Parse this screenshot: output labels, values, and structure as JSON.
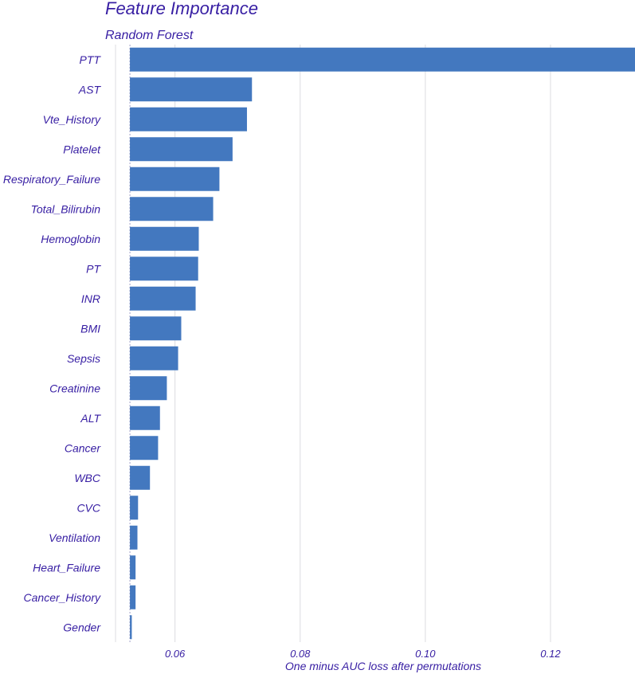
{
  "chart_data": {
    "type": "bar",
    "orientation": "horizontal",
    "title": "Feature Importance",
    "subtitle": "Random Forest",
    "xlabel": "One minus AUC loss after permutations",
    "ylabel": "",
    "baseline": 0.0528,
    "xlim": [
      0.0505,
      0.1335
    ],
    "xticks": [
      0.06,
      0.08,
      0.1,
      0.12
    ],
    "xtick_labels": [
      "0.06",
      "0.08",
      "0.10",
      "0.12"
    ],
    "grid": true,
    "bar_color": "#4378bf",
    "text_color": "#371ea3",
    "categories": [
      "PTT",
      "AST",
      "Vte_History",
      "Platelet",
      "Respiratory_Failure",
      "Total_Bilirubin",
      "Hemoglobin",
      "PT",
      "INR",
      "BMI",
      "Sepsis",
      "Creatinine",
      "ALT",
      "Cancer",
      "WBC",
      "CVC",
      "Ventilation",
      "Heart_Failure",
      "Cancer_History",
      "Gender"
    ],
    "values": [
      0.1335,
      0.0723,
      0.0715,
      0.0692,
      0.0671,
      0.0661,
      0.0638,
      0.0637,
      0.0633,
      0.061,
      0.0605,
      0.0587,
      0.0576,
      0.0573,
      0.056,
      0.0541,
      0.054,
      0.0537,
      0.0537,
      0.0531
    ]
  }
}
